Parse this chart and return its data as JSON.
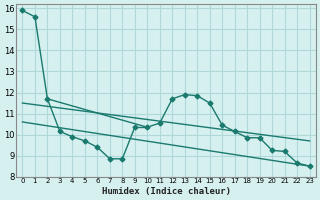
{
  "bg_color": "#d6f0f0",
  "grid_color": "#b0d8d8",
  "line_color": "#1a7a6e",
  "xlabel": "Humidex (Indice chaleur)",
  "xlim": [
    -0.5,
    23.5
  ],
  "ylim": [
    8,
    16.2
  ],
  "yticks": [
    8,
    9,
    10,
    11,
    12,
    13,
    14,
    15,
    16
  ],
  "xticks": [
    0,
    1,
    2,
    3,
    4,
    5,
    6,
    7,
    8,
    9,
    10,
    11,
    12,
    13,
    14,
    15,
    16,
    17,
    18,
    19,
    20,
    21,
    22,
    23
  ],
  "line1_x": [
    0,
    1,
    2,
    10,
    11,
    12,
    13,
    14,
    15,
    16,
    17,
    18,
    19,
    20,
    21,
    22,
    23
  ],
  "line1_y": [
    15.9,
    15.6,
    11.7,
    10.35,
    10.55,
    11.7,
    11.9,
    11.85,
    11.5,
    10.45,
    10.15,
    9.85,
    9.85,
    9.25,
    9.2,
    8.65,
    8.5
  ],
  "line2_x": [
    3,
    4,
    5,
    6,
    7,
    8,
    9
  ],
  "line2_y": [
    10.15,
    9.9,
    9.7,
    9.4,
    8.85,
    8.85,
    10.35
  ],
  "line3_x": [
    0,
    23
  ],
  "line3_y": [
    11.5,
    9.7
  ],
  "line4_x": [
    0,
    23
  ],
  "line4_y": [
    10.6,
    8.5
  ]
}
